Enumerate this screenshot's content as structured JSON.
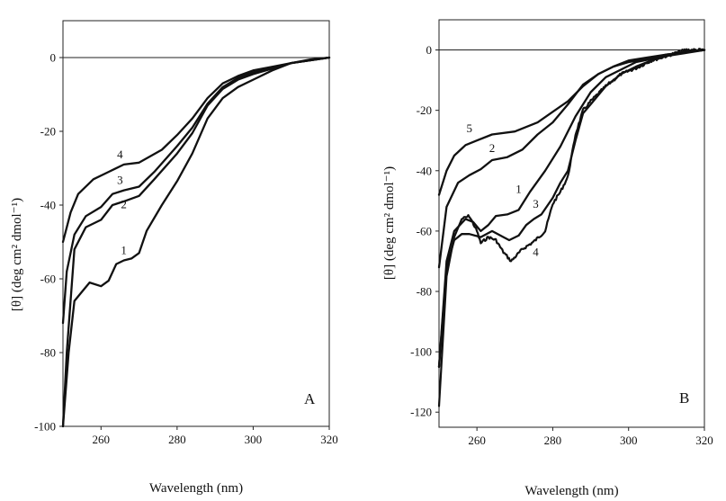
{
  "chart_data": [
    {
      "type": "line",
      "panel_label": "A",
      "xlabel": "Wavelength (nm)",
      "ylabel": "[θ] (deg cm² dmol⁻¹)",
      "xlim": [
        250,
        320
      ],
      "ylim": [
        -100,
        10
      ],
      "xticks": [
        260,
        280,
        300,
        320
      ],
      "yticks": [
        0,
        -20,
        -40,
        -60,
        -80,
        -100
      ],
      "grid": false,
      "zero_line": true,
      "line_color": "#111111",
      "series": [
        {
          "name": "4",
          "x": [
            250,
            252,
            254,
            258,
            262,
            266,
            270,
            276,
            280,
            284,
            288,
            292,
            296,
            300,
            305,
            310,
            315,
            320
          ],
          "y": [
            -50,
            -42,
            -37,
            -33,
            -31,
            -29,
            -28.5,
            -25,
            -21,
            -16.5,
            -11,
            -7,
            -5,
            -3.5,
            -2.5,
            -1.5,
            -0.5,
            0
          ]
        },
        {
          "name": "3",
          "x": [
            250,
            251,
            253,
            256,
            260,
            263,
            266,
            270,
            274,
            280,
            284,
            288,
            292,
            296,
            300,
            305,
            310,
            320
          ],
          "y": [
            -72,
            -58,
            -48,
            -43,
            -40.5,
            -37,
            -36,
            -35,
            -31,
            -24,
            -19,
            -12.5,
            -8,
            -5.5,
            -4,
            -3,
            -1.5,
            0
          ]
        },
        {
          "name": "2",
          "x": [
            250,
            251,
            253,
            256,
            260,
            263,
            266,
            270,
            274,
            280,
            284,
            288,
            292,
            296,
            300,
            305,
            310,
            320
          ],
          "y": [
            -100,
            -80,
            -52,
            -46,
            -44,
            -40,
            -39,
            -37.5,
            -33,
            -26,
            -20.5,
            -13,
            -8.5,
            -6,
            -4.5,
            -3,
            -1.5,
            0
          ]
        },
        {
          "name": "1",
          "x": [
            250,
            251.5,
            253,
            255,
            257,
            260,
            262,
            264,
            266,
            268,
            270,
            272,
            276,
            280,
            284,
            288,
            292,
            296,
            300,
            305,
            310,
            320
          ],
          "y": [
            -100,
            -80,
            -66,
            -63.5,
            -61,
            -62,
            -60.5,
            -56,
            -55,
            -54.5,
            -53,
            -47,
            -40,
            -33.5,
            -26,
            -16.5,
            -11,
            -8,
            -6,
            -3.5,
            -1.5,
            0
          ]
        }
      ]
    },
    {
      "type": "line",
      "panel_label": "B",
      "xlabel": "Wavelength (nm)",
      "ylabel": "[θ] (deg cm² dmol⁻¹)",
      "xlim": [
        250,
        320
      ],
      "ylim": [
        -125,
        10
      ],
      "xticks": [
        260,
        280,
        300,
        320
      ],
      "yticks": [
        0,
        -20,
        -40,
        -60,
        -80,
        -100,
        -120
      ],
      "grid": false,
      "zero_line": true,
      "line_color": "#111111",
      "series": [
        {
          "name": "5",
          "x": [
            250,
            252,
            254,
            257,
            260,
            264,
            270,
            276,
            280,
            284,
            288,
            292,
            296,
            300,
            305,
            310,
            320
          ],
          "y": [
            -48,
            -40,
            -35,
            -31.5,
            -30,
            -28,
            -27,
            -24,
            -20.5,
            -17,
            -12,
            -8,
            -5.5,
            -4,
            -3,
            -1.5,
            0
          ]
        },
        {
          "name": "2",
          "x": [
            250,
            252,
            255,
            258,
            261,
            264,
            268,
            272,
            276,
            280,
            284,
            288,
            292,
            296,
            300,
            305,
            310,
            320
          ],
          "y": [
            -72,
            -52,
            -44,
            -41.5,
            -39.5,
            -36.5,
            -35.5,
            -33,
            -28,
            -24,
            -18,
            -11.5,
            -8,
            -5.5,
            -3.5,
            -2.5,
            -1.5,
            0
          ]
        },
        {
          "name": "1",
          "x": [
            250,
            252,
            254,
            257,
            259,
            261,
            263,
            265,
            268,
            271,
            274,
            278,
            282,
            286,
            290,
            294,
            298,
            302,
            306,
            310,
            320
          ],
          "y": [
            -105,
            -70,
            -60,
            -56,
            -57,
            -60,
            -58,
            -55,
            -54.5,
            -53,
            -47,
            -40,
            -32,
            -22,
            -14,
            -9,
            -6.5,
            -4,
            -3,
            -2,
            0
          ]
        },
        {
          "name": "3",
          "x": [
            250,
            252,
            254,
            256,
            258,
            261,
            264,
            267,
            268.5,
            271,
            273,
            275,
            277,
            280,
            282,
            284,
            286,
            288,
            290,
            294,
            298,
            302,
            306,
            310,
            315,
            320
          ],
          "y": [
            -105,
            -72,
            -63,
            -61,
            -61,
            -62,
            -60,
            -62,
            -63,
            -61.5,
            -58,
            -56,
            -54.5,
            -49,
            -44,
            -40,
            -30,
            -21,
            -18,
            -12,
            -8,
            -5.5,
            -3.5,
            -2,
            -0.5,
            0
          ]
        },
        {
          "name": "4",
          "noisy": true,
          "x": [
            250,
            252,
            254,
            256,
            258,
            260,
            261,
            263,
            265,
            267,
            269,
            272,
            275,
            278,
            280,
            282,
            284,
            286,
            288,
            290,
            294,
            298,
            302,
            306,
            310,
            315,
            320
          ],
          "y": [
            -118,
            -75,
            -62,
            -56,
            -55,
            -60,
            -64,
            -62,
            -63,
            -67,
            -70,
            -66,
            -63.5,
            -60,
            -51,
            -47,
            -42,
            -28,
            -20,
            -17,
            -12,
            -8,
            -6,
            -3.5,
            -2,
            0,
            0
          ]
        }
      ]
    }
  ]
}
